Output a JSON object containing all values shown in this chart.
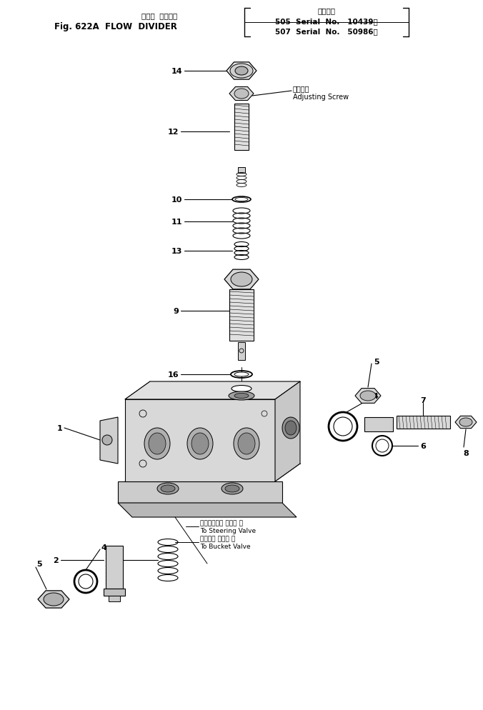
{
  "title_line1": "フロー  デバイダ",
  "title_line2": "Fig. 622A  FLOW  DIVIDER",
  "serial_header": "適用号機",
  "serial1": "505  Serial  No.   10439～",
  "serial2": "507  Serial  No.   50986～",
  "label_adjusting_jp": "調整ネジ",
  "label_adjusting_en": "Adjusting Screw",
  "label_steering_jp": "ステアリング バルブ へ",
  "label_steering_en": "To Steering Valve",
  "label_bucket_jp": "バケット バルブ へ",
  "label_bucket_en": "To Bucket Valve",
  "bg_color": "#ffffff",
  "line_color": "#000000"
}
